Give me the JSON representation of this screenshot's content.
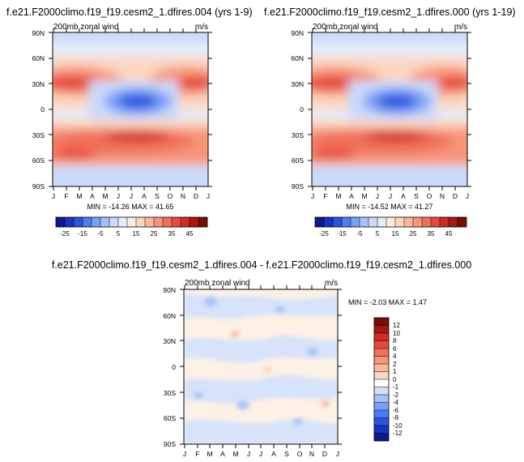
{
  "chart_data": [
    {
      "type": "heatmap",
      "title": "f.e21.F2000climo.f19_f19.cesm2_1.dfires.004 (yrs 1-9)",
      "subtitle_left": "200mb zonal wind",
      "subtitle_right": "m/s",
      "x_ticks": [
        "J",
        "F",
        "M",
        "A",
        "M",
        "J",
        "J",
        "A",
        "S",
        "O",
        "N",
        "D",
        "J"
      ],
      "y_ticks": [
        "90N",
        "60N",
        "30N",
        "0",
        "30S",
        "60S",
        "90S"
      ],
      "stats": "MIN = -14.26  MAX =  41.65",
      "colorbar_labels": [
        "-25",
        "-15",
        "-5",
        "5",
        "15",
        "25",
        "35",
        "45"
      ],
      "colors": [
        "#0a1a8c",
        "#1933c2",
        "#2a55e0",
        "#4c7cf0",
        "#7aa0f5",
        "#a5c0f8",
        "#c9dafb",
        "#e6eefd",
        "#fbeede",
        "#fcd6bf",
        "#f9b89b",
        "#f6957a",
        "#f0715a",
        "#e64a3c",
        "#cf2c24",
        "#a51810",
        "#7a0c06"
      ]
    },
    {
      "type": "heatmap",
      "title": "f.e21.F2000climo.f19_f19.cesm2_1.dfires.000 (yrs 1-19)",
      "subtitle_left": "200mb zonal wind",
      "subtitle_right": "m/s",
      "x_ticks": [
        "J",
        "F",
        "M",
        "A",
        "M",
        "J",
        "J",
        "A",
        "S",
        "O",
        "N",
        "D",
        "J"
      ],
      "y_ticks": [
        "90N",
        "60N",
        "30N",
        "0",
        "30S",
        "60S",
        "90S"
      ],
      "stats": "MIN = -14.52  MAX =  41.27",
      "colorbar_labels": [
        "-25",
        "-15",
        "-5",
        "5",
        "15",
        "25",
        "35",
        "45"
      ]
    },
    {
      "type": "heatmap",
      "title": "f.e21.F2000climo.f19_f19.cesm2_1.dfires.004 - f.e21.F2000climo.f19_f19.cesm2_1.dfires.000",
      "subtitle_left": "200mb zonal wind",
      "subtitle_right": "m/s",
      "x_ticks": [
        "J",
        "F",
        "M",
        "A",
        "M",
        "J",
        "J",
        "A",
        "S",
        "O",
        "N",
        "D",
        "J"
      ],
      "y_ticks": [
        "90N",
        "60N",
        "30N",
        "0",
        "30S",
        "60S",
        "90S"
      ],
      "stats": "MIN =  -2.03  MAX =   1.47",
      "colorbar_labels": [
        "12",
        "10",
        "8",
        "6",
        "4",
        "2",
        "1",
        "0",
        "-1",
        "-2",
        "-4",
        "-6",
        "-8",
        "-10",
        "-12"
      ],
      "colors": [
        "#7a0c06",
        "#a51810",
        "#cf2c24",
        "#e64a3c",
        "#f0715a",
        "#f6957a",
        "#f9b89b",
        "#fcd6bf",
        "#ffffff",
        "#d2def8",
        "#a5c0f8",
        "#7aa0f5",
        "#4c7cf0",
        "#2a55e0",
        "#1933c2",
        "#0a1a8c"
      ]
    }
  ]
}
